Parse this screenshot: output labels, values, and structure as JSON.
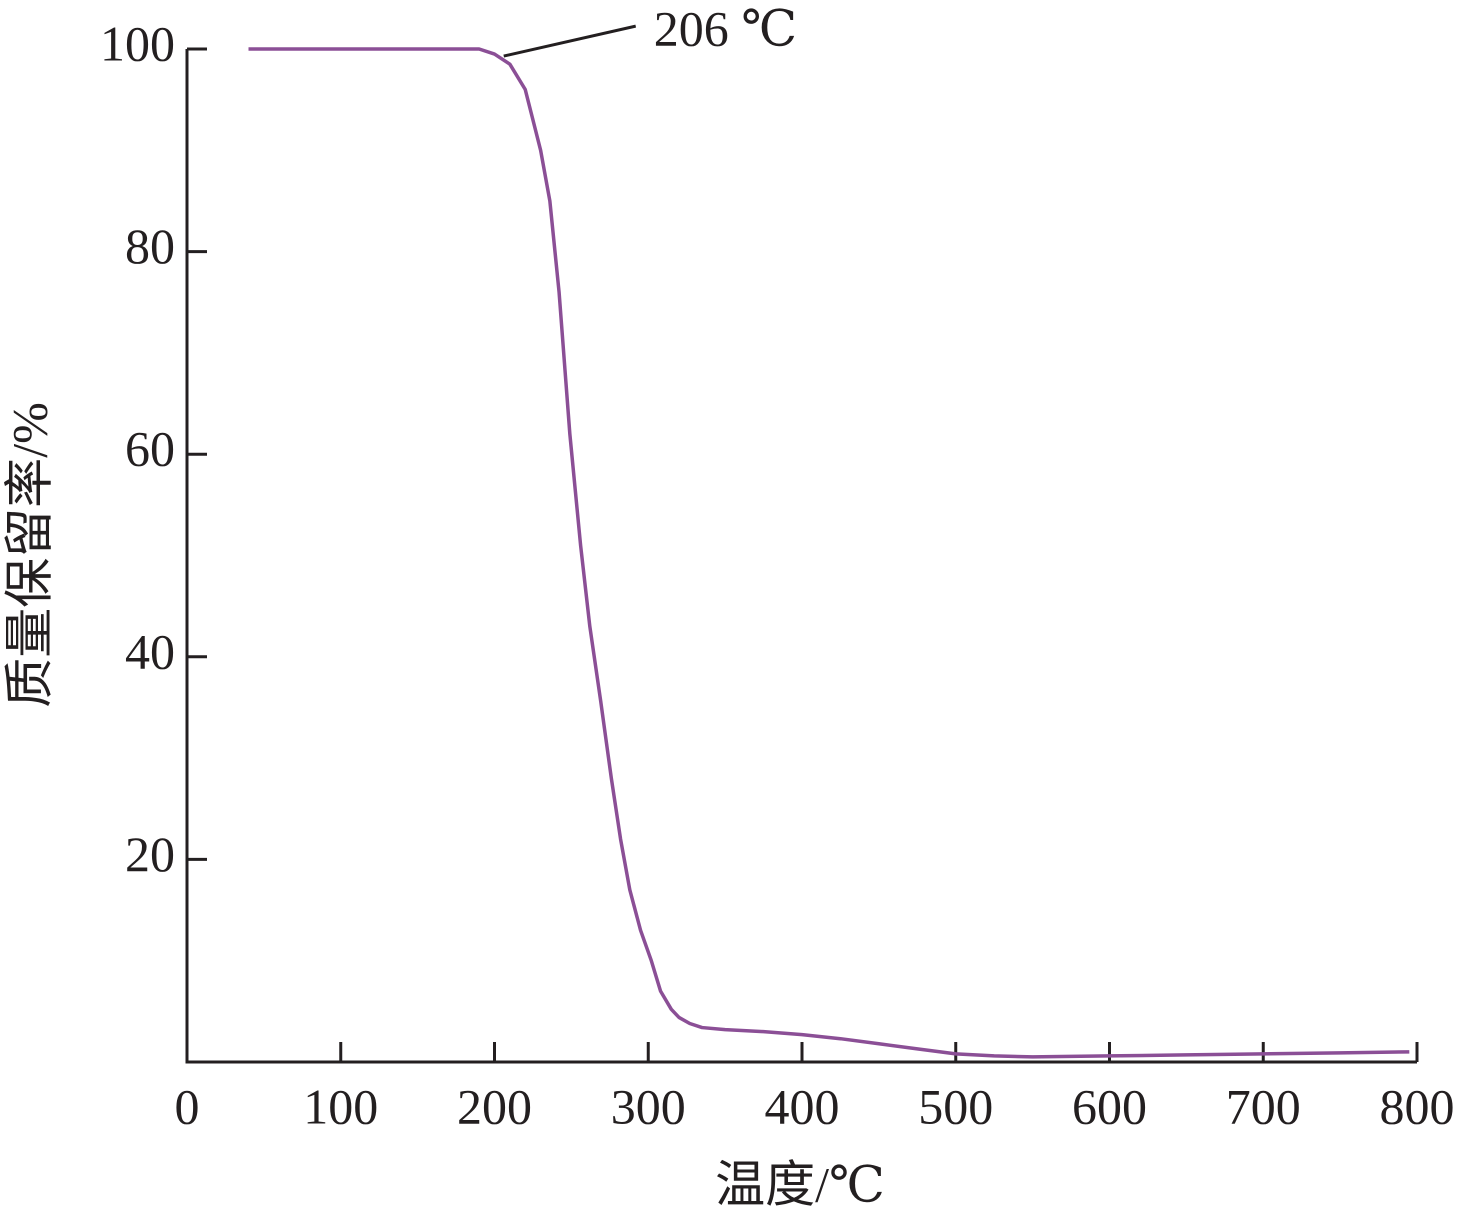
{
  "chart_data": {
    "type": "line",
    "x_label": "温度/℃",
    "y_label": "质量保留率/%",
    "annotation": {
      "text": "206 ℃",
      "x": 206,
      "y": 99.3
    },
    "x": [
      40,
      100,
      150,
      190,
      200,
      210,
      220,
      230,
      236,
      242,
      249,
      256,
      262,
      269,
      276,
      282,
      288,
      295,
      302,
      308,
      315,
      320,
      327,
      335,
      350,
      375,
      400,
      425,
      450,
      475,
      500,
      525,
      550,
      600,
      650,
      700,
      750,
      795
    ],
    "series": [
      {
        "name": "TG",
        "color": "#8b4f96",
        "values": [
          100,
          100,
          100,
          100,
          99.5,
          98.5,
          96,
          90,
          85,
          76,
          62,
          51,
          43,
          35.7,
          28,
          22,
          17,
          13,
          10,
          7,
          5.2,
          4.4,
          3.8,
          3.4,
          3.2,
          3.0,
          2.7,
          2.3,
          1.8,
          1.3,
          0.8,
          0.6,
          0.5,
          0.6,
          0.7,
          0.8,
          0.9,
          1.0
        ]
      }
    ],
    "xlim": [
      0,
      800
    ],
    "ylim": [
      0,
      100
    ],
    "xticks": [
      0,
      100,
      200,
      300,
      400,
      500,
      600,
      700,
      800
    ],
    "yticks": [
      20,
      40,
      60,
      80,
      100
    ]
  }
}
